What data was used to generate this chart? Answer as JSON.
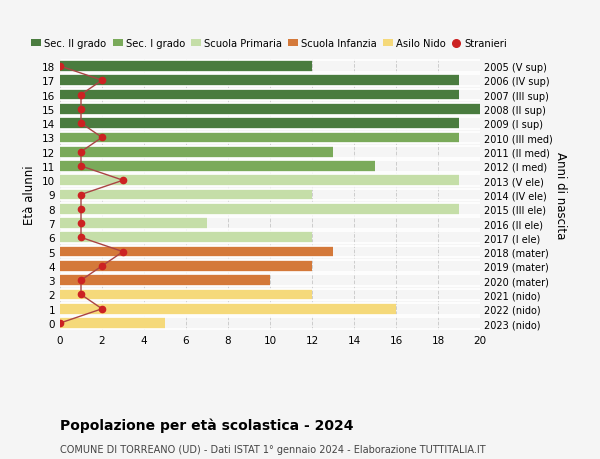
{
  "ages": [
    18,
    17,
    16,
    15,
    14,
    13,
    12,
    11,
    10,
    9,
    8,
    7,
    6,
    5,
    4,
    3,
    2,
    1,
    0
  ],
  "years": [
    "2005 (V sup)",
    "2006 (IV sup)",
    "2007 (III sup)",
    "2008 (II sup)",
    "2009 (I sup)",
    "2010 (III med)",
    "2011 (II med)",
    "2012 (I med)",
    "2013 (V ele)",
    "2014 (IV ele)",
    "2015 (III ele)",
    "2016 (II ele)",
    "2017 (I ele)",
    "2018 (mater)",
    "2019 (mater)",
    "2020 (mater)",
    "2021 (nido)",
    "2022 (nido)",
    "2023 (nido)"
  ],
  "values": [
    12,
    19,
    19,
    20,
    19,
    19,
    13,
    15,
    19,
    12,
    19,
    7,
    12,
    13,
    12,
    10,
    12,
    16,
    5
  ],
  "stranieri": [
    0,
    2,
    1,
    1,
    1,
    2,
    1,
    1,
    3,
    1,
    1,
    1,
    1,
    3,
    2,
    1,
    1,
    2,
    0
  ],
  "bar_colors": [
    "#4a7c3f",
    "#4a7c3f",
    "#4a7c3f",
    "#4a7c3f",
    "#4a7c3f",
    "#7aaa5a",
    "#7aaa5a",
    "#7aaa5a",
    "#c5dea8",
    "#c5dea8",
    "#c5dea8",
    "#c5dea8",
    "#c5dea8",
    "#d4793a",
    "#d4793a",
    "#d4793a",
    "#f5d97a",
    "#f5d97a",
    "#f5d97a"
  ],
  "legend_colors": [
    "#4a7c3f",
    "#7aaa5a",
    "#c5dea8",
    "#d4793a",
    "#f5d97a",
    "#cc2222"
  ],
  "legend_labels": [
    "Sec. II grado",
    "Sec. I grado",
    "Scuola Primaria",
    "Scuola Infanzia",
    "Asilo Nido",
    "Stranieri"
  ],
  "ylabel": "Età alunni",
  "right_label": "Anni di nascita",
  "title": "Popolazione per età scolastica - 2024",
  "subtitle": "COMUNE DI TORREANO (UD) - Dati ISTAT 1° gennaio 2024 - Elaborazione TUTTITALIA.IT",
  "xlim": [
    0,
    20
  ],
  "grid_color": "#cccccc",
  "bg_color": "#f5f5f5",
  "stranieri_color": "#cc2222",
  "stranieri_line_color": "#aa4444"
}
